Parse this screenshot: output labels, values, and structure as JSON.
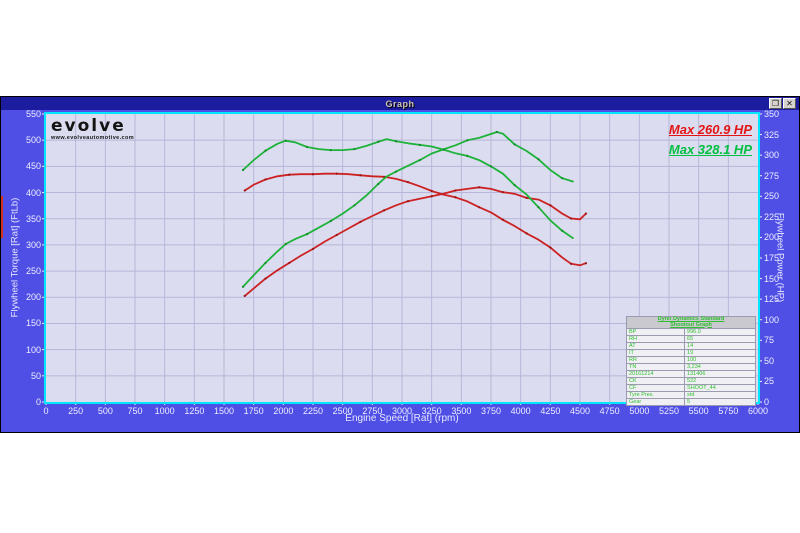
{
  "window": {
    "title": "Graph",
    "restore_glyph": "❐",
    "close_glyph": "✕"
  },
  "logo": {
    "name": "evolve",
    "url": "www.evolveautomotive.com"
  },
  "annotations": {
    "max_red": "Max 260.9 HP",
    "max_green": "Max 328.1 HP"
  },
  "colors": {
    "titlebar": "#1c1c9e",
    "window_body": "#4f4fe6",
    "plot_bg": "#dcdcf0",
    "grid": "#b6b6d8",
    "plot_border": "#00e6ff",
    "red_series": "#cc2222",
    "green_series": "#1db339",
    "max_red_label": "#e41414",
    "max_green_label": "#00c040",
    "table_text": "#2fbe2f"
  },
  "stats_table": {
    "header_line1": "Dyno Dynamics Standard",
    "header_line2": "Shootout Graph",
    "rows": [
      [
        "BP",
        "996.0"
      ],
      [
        "RH",
        "65"
      ],
      [
        "AT",
        "14"
      ],
      [
        "IT",
        "19"
      ],
      [
        "RR",
        "100"
      ],
      [
        "TN",
        "3,234"
      ],
      [
        "20161214",
        "131406"
      ],
      [
        "CK",
        "522"
      ],
      [
        "CF",
        "SHOOT_44"
      ],
      [
        "Tyre Pres.",
        "std"
      ],
      [
        "Gear",
        "5"
      ]
    ]
  },
  "chart_data": {
    "type": "line",
    "title": "Graph",
    "xlabel": "Engine Speed [Rat] (rpm)",
    "ylabel_left": "Flywheel Torque [Rat] (FtLb)",
    "ylabel_right": "Flywheel Power (HP)",
    "xlim": [
      0,
      6000
    ],
    "x_tick_step": 250,
    "ylim_left": [
      0,
      550
    ],
    "y_tick_step_left": 50,
    "ylim_right": [
      0,
      350
    ],
    "y_tick_step_right": 25,
    "grid": true,
    "legend_position": "top-right",
    "series": [
      {
        "name": "torque-red-baseline",
        "axis": "left",
        "color": "#cc2222",
        "dot_color": "#991414",
        "points": [
          [
            1675,
            404
          ],
          [
            1750,
            415
          ],
          [
            1850,
            425
          ],
          [
            1950,
            431
          ],
          [
            2050,
            434
          ],
          [
            2150,
            435
          ],
          [
            2250,
            435
          ],
          [
            2350,
            436
          ],
          [
            2450,
            436
          ],
          [
            2550,
            435
          ],
          [
            2650,
            433
          ],
          [
            2750,
            431
          ],
          [
            2850,
            430
          ],
          [
            2950,
            426
          ],
          [
            3050,
            420
          ],
          [
            3150,
            412
          ],
          [
            3250,
            403
          ],
          [
            3350,
            396
          ],
          [
            3450,
            391
          ],
          [
            3550,
            383
          ],
          [
            3650,
            372
          ],
          [
            3750,
            362
          ],
          [
            3850,
            348
          ],
          [
            3950,
            336
          ],
          [
            4050,
            322
          ],
          [
            4150,
            310
          ],
          [
            4250,
            295
          ],
          [
            4350,
            276
          ],
          [
            4425,
            264
          ],
          [
            4500,
            261
          ],
          [
            4550,
            265
          ]
        ]
      },
      {
        "name": "power-red-baseline",
        "axis": "right",
        "color": "#cc2222",
        "dot_color": "#991414",
        "max_value_hp": 260.9,
        "points": [
          [
            1675,
            129
          ],
          [
            1750,
            138
          ],
          [
            1850,
            150
          ],
          [
            1950,
            160
          ],
          [
            2050,
            169
          ],
          [
            2150,
            178
          ],
          [
            2250,
            186
          ],
          [
            2350,
            195
          ],
          [
            2450,
            203
          ],
          [
            2550,
            211
          ],
          [
            2650,
            219
          ],
          [
            2750,
            226
          ],
          [
            2850,
            233
          ],
          [
            2950,
            239
          ],
          [
            3050,
            244
          ],
          [
            3150,
            247
          ],
          [
            3250,
            250
          ],
          [
            3350,
            253
          ],
          [
            3450,
            257
          ],
          [
            3550,
            259
          ],
          [
            3650,
            260.9
          ],
          [
            3750,
            259
          ],
          [
            3850,
            255
          ],
          [
            3950,
            253
          ],
          [
            4050,
            248
          ],
          [
            4150,
            246
          ],
          [
            4250,
            239
          ],
          [
            4350,
            229
          ],
          [
            4425,
            223
          ],
          [
            4500,
            222
          ],
          [
            4550,
            229
          ]
        ]
      },
      {
        "name": "torque-green-tuned",
        "axis": "left",
        "color": "#1db339",
        "dot_color": "#128a28",
        "points": [
          [
            1660,
            443
          ],
          [
            1750,
            462
          ],
          [
            1850,
            480
          ],
          [
            1950,
            493
          ],
          [
            2020,
            499
          ],
          [
            2100,
            496
          ],
          [
            2200,
            487
          ],
          [
            2300,
            483
          ],
          [
            2400,
            481
          ],
          [
            2500,
            481
          ],
          [
            2600,
            483
          ],
          [
            2700,
            489
          ],
          [
            2800,
            497
          ],
          [
            2870,
            502
          ],
          [
            2950,
            498
          ],
          [
            3050,
            494
          ],
          [
            3150,
            491
          ],
          [
            3250,
            488
          ],
          [
            3350,
            482
          ],
          [
            3450,
            475
          ],
          [
            3550,
            470
          ],
          [
            3650,
            462
          ],
          [
            3750,
            450
          ],
          [
            3850,
            436
          ],
          [
            3950,
            414
          ],
          [
            4050,
            396
          ],
          [
            4150,
            372
          ],
          [
            4250,
            347
          ],
          [
            4350,
            327
          ],
          [
            4440,
            313
          ]
        ]
      },
      {
        "name": "power-green-tuned",
        "axis": "right",
        "color": "#1db339",
        "dot_color": "#128a28",
        "max_value_hp": 328.1,
        "points": [
          [
            1660,
            140
          ],
          [
            1750,
            154
          ],
          [
            1850,
            169
          ],
          [
            1950,
            183
          ],
          [
            2020,
            192
          ],
          [
            2100,
            198
          ],
          [
            2200,
            204
          ],
          [
            2300,
            212
          ],
          [
            2400,
            220
          ],
          [
            2500,
            229
          ],
          [
            2600,
            239
          ],
          [
            2700,
            251
          ],
          [
            2800,
            265
          ],
          [
            2870,
            274
          ],
          [
            2950,
            280
          ],
          [
            3050,
            287
          ],
          [
            3150,
            294
          ],
          [
            3250,
            302
          ],
          [
            3350,
            307
          ],
          [
            3450,
            312
          ],
          [
            3550,
            318
          ],
          [
            3650,
            321
          ],
          [
            3800,
            328.1
          ],
          [
            3850,
            326
          ],
          [
            3950,
            313
          ],
          [
            4050,
            305
          ],
          [
            4150,
            295
          ],
          [
            4250,
            282
          ],
          [
            4350,
            272
          ],
          [
            4440,
            268
          ]
        ]
      }
    ]
  }
}
